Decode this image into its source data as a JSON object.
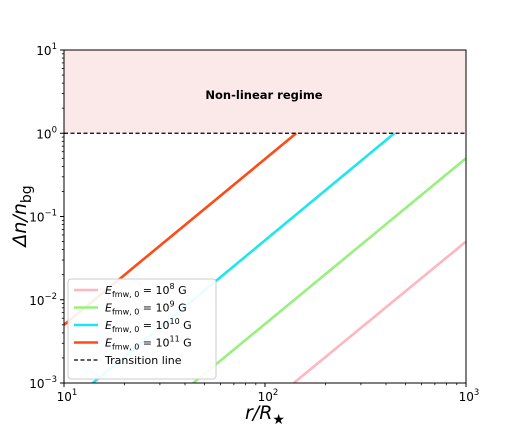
{
  "chart_data": {
    "type": "line",
    "xscale": "log",
    "yscale": "log",
    "xlim": [
      10,
      1000
    ],
    "ylim": [
      0.001,
      10
    ],
    "x_ticks": [
      {
        "base": "10",
        "exp": "1",
        "value": 10
      },
      {
        "base": "10",
        "exp": "2",
        "value": 100
      },
      {
        "base": "10",
        "exp": "3",
        "value": 1000
      }
    ],
    "y_ticks": [
      {
        "base": "10",
        "exp": "−3",
        "value": 0.001
      },
      {
        "base": "10",
        "exp": "−2",
        "value": 0.01
      },
      {
        "base": "10",
        "exp": "−1",
        "value": 0.1
      },
      {
        "base": "10",
        "exp": "0",
        "value": 1
      },
      {
        "base": "10",
        "exp": "1",
        "value": 10
      }
    ],
    "xlabel": {
      "main": "r/R",
      "sub": "★"
    },
    "ylabel": {
      "main": "Δn/n",
      "sub": "bg"
    },
    "shaded_region": {
      "y_from": 1,
      "y_to": 10,
      "color": "#fbe9ea",
      "label": "Non-linear regime"
    },
    "reference_line": {
      "y": 1,
      "name": "Transition line",
      "color": "#000000",
      "style": "dashed"
    },
    "series": [
      {
        "name": "E_fmw,0 = 10^8 G",
        "exp": "8",
        "color": "#ffb6c1",
        "x": [
          139,
          1000
        ],
        "y": [
          0.001,
          0.05
        ]
      },
      {
        "name": "E_fmw,0 = 10^9 G",
        "exp": "9",
        "color": "#98f07e",
        "x": [
          44,
          1000
        ],
        "y": [
          0.001,
          0.5
        ]
      },
      {
        "name": "E_fmw,0 = 10^10 G",
        "exp": "10",
        "color": "#1ee6f0",
        "x": [
          13.9,
          440
        ],
        "y": [
          0.001,
          1
        ]
      },
      {
        "name": "E_fmw,0 = 10^11 G",
        "exp": "11",
        "color": "#ff4a14",
        "x": [
          10,
          143
        ],
        "y": [
          0.005,
          1
        ]
      }
    ],
    "legend": {
      "position": "lower-left",
      "entries_prefix": "E",
      "entries_sub": "fmw, 0",
      "entries_unit": "G",
      "reference_label": "Transition line"
    }
  }
}
